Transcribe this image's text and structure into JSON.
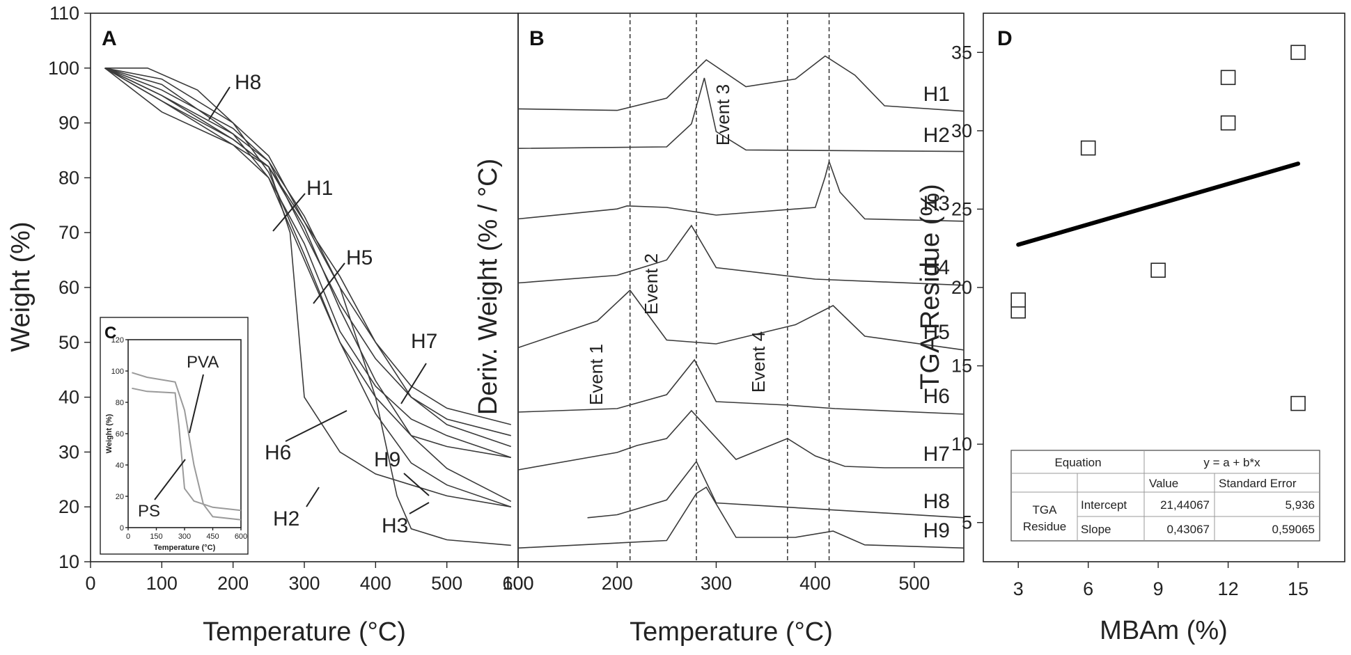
{
  "chart_data": [
    {
      "type": "line",
      "panel": "A",
      "xlabel": "Temperature (°C)",
      "ylabel": "Weight (%)",
      "xlim": [
        0,
        600
      ],
      "ylim": [
        10,
        110
      ],
      "xticks": [
        "0",
        "100",
        "200",
        "300",
        "400",
        "500",
        "600"
      ],
      "yticks": [
        "10",
        "20",
        "30",
        "40",
        "50",
        "60",
        "70",
        "80",
        "90",
        "100",
        "110"
      ],
      "series": [
        {
          "name": "H1",
          "x": [
            20,
            100,
            200,
            250,
            300,
            350,
            400,
            450,
            500,
            590
          ],
          "y": [
            100,
            97,
            88,
            83,
            70,
            57,
            47,
            40,
            36,
            33
          ]
        },
        {
          "name": "H2",
          "x": [
            20,
            100,
            200,
            250,
            280,
            300,
            350,
            400,
            450,
            500,
            590
          ],
          "y": [
            100,
            92,
            86,
            82,
            70,
            40,
            30,
            26,
            24,
            22,
            20
          ]
        },
        {
          "name": "H3",
          "x": [
            20,
            100,
            200,
            250,
            300,
            350,
            400,
            430,
            450,
            500,
            590
          ],
          "y": [
            100,
            94,
            87,
            82,
            72,
            60,
            40,
            22,
            16,
            14,
            13
          ]
        },
        {
          "name": "H4",
          "x": [
            20,
            100,
            200,
            250,
            300,
            350,
            400,
            450,
            500,
            590
          ],
          "y": [
            100,
            95,
            88,
            80,
            65,
            50,
            40,
            33,
            31,
            29
          ]
        },
        {
          "name": "H5",
          "x": [
            20,
            100,
            200,
            250,
            300,
            350,
            400,
            450,
            500,
            590
          ],
          "y": [
            100,
            98,
            90,
            84,
            72,
            62,
            50,
            40,
            35,
            31
          ]
        },
        {
          "name": "H6",
          "x": [
            20,
            100,
            200,
            250,
            300,
            350,
            400,
            450,
            500,
            590
          ],
          "y": [
            100,
            94,
            86,
            80,
            68,
            52,
            42,
            36,
            33,
            29
          ]
        },
        {
          "name": "H7",
          "x": [
            20,
            100,
            200,
            250,
            300,
            350,
            400,
            450,
            500,
            590
          ],
          "y": [
            100,
            96,
            89,
            83,
            73,
            60,
            50,
            42,
            38,
            35
          ]
        },
        {
          "name": "H8",
          "x": [
            20,
            80,
            150,
            200,
            250,
            300,
            350,
            400,
            450,
            500,
            590
          ],
          "y": [
            100,
            100,
            96,
            90,
            81,
            66,
            50,
            37,
            28,
            24,
            20
          ]
        },
        {
          "name": "H9",
          "x": [
            20,
            100,
            200,
            250,
            300,
            350,
            400,
            450,
            500,
            590
          ],
          "y": [
            100,
            95,
            87,
            82,
            71,
            56,
            43,
            33,
            27,
            21
          ]
        }
      ],
      "inset": {
        "panel": "C",
        "xlabel": "Temperature (°C)",
        "ylabel": "Weight (%)",
        "xlim": [
          0,
          600
        ],
        "ylim": [
          0,
          120
        ],
        "xticks": [
          "0",
          "150",
          "300",
          "450",
          "600"
        ],
        "yticks": [
          "0",
          "20",
          "40",
          "60",
          "80",
          "100",
          "120"
        ],
        "series": [
          {
            "name": "PVA",
            "x": [
              20,
              100,
              250,
              300,
              350,
              400,
              450,
              600
            ],
            "y": [
              99,
              96,
              93,
              75,
              40,
              15,
              7,
              5
            ]
          },
          {
            "name": "PS",
            "x": [
              20,
              100,
              250,
              270,
              300,
              350,
              450,
              600
            ],
            "y": [
              89,
              87,
              86,
              65,
              25,
              17,
              13,
              11
            ]
          }
        ]
      }
    },
    {
      "type": "line",
      "panel": "B",
      "xlabel": "Temperature (°C)",
      "ylabel": "Deriv. Weight (% / °C)",
      "xlim": [
        100,
        550
      ],
      "xticks": [
        "100",
        "200",
        "300",
        "400",
        "500"
      ],
      "events": [
        {
          "label": "Event 1",
          "x": 213
        },
        {
          "label": "Event 2",
          "x": 280
        },
        {
          "label": "Event 3",
          "x": 372
        },
        {
          "label": "Event 4",
          "x": 414
        }
      ],
      "series": [
        {
          "name": "H1",
          "x": [
            100,
            200,
            250,
            290,
            330,
            380,
            410,
            440,
            470,
            550
          ],
          "y": [
            0.06,
            0.04,
            0.2,
            0.7,
            0.35,
            0.45,
            0.75,
            0.5,
            0.1,
            0.03
          ]
        },
        {
          "name": "H2",
          "x": [
            100,
            250,
            275,
            288,
            300,
            330,
            550
          ],
          "y": [
            0.08,
            0.1,
            0.4,
            1.0,
            0.3,
            0.06,
            0.04
          ]
        },
        {
          "name": "H3",
          "x": [
            100,
            200,
            210,
            250,
            300,
            400,
            410,
            414,
            425,
            450,
            550
          ],
          "y": [
            0.05,
            0.18,
            0.22,
            0.2,
            0.1,
            0.2,
            0.6,
            0.8,
            0.4,
            0.05,
            0.02
          ]
        },
        {
          "name": "H4",
          "x": [
            100,
            200,
            250,
            275,
            300,
            400,
            550
          ],
          "y": [
            0.05,
            0.15,
            0.35,
            0.8,
            0.25,
            0.1,
            0.02
          ]
        },
        {
          "name": "H5",
          "x": [
            100,
            180,
            213,
            250,
            300,
            380,
            418,
            450,
            550
          ],
          "y": [
            0.05,
            0.4,
            0.8,
            0.15,
            0.1,
            0.35,
            0.6,
            0.2,
            0.02
          ]
        },
        {
          "name": "H6",
          "x": [
            100,
            200,
            250,
            278,
            300,
            372,
            420,
            550
          ],
          "y": [
            0.05,
            0.1,
            0.3,
            0.8,
            0.2,
            0.15,
            0.1,
            0.02
          ]
        },
        {
          "name": "H7",
          "x": [
            100,
            200,
            220,
            250,
            275,
            320,
            372,
            400,
            430,
            470,
            550
          ],
          "y": [
            0.05,
            0.3,
            0.4,
            0.5,
            0.9,
            0.2,
            0.5,
            0.25,
            0.1,
            0.08,
            0.08
          ]
        },
        {
          "name": "H8",
          "x": [
            170,
            200,
            250,
            280,
            300,
            350,
            550
          ],
          "y": [
            0.05,
            0.1,
            0.35,
            1.0,
            0.3,
            0.25,
            0.05
          ]
        },
        {
          "name": "H9",
          "x": [
            100,
            250,
            280,
            290,
            320,
            380,
            418,
            450,
            550
          ],
          "y": [
            0.03,
            0.15,
            0.9,
            1.0,
            0.2,
            0.2,
            0.3,
            0.08,
            0.03
          ]
        }
      ]
    },
    {
      "type": "scatter",
      "panel": "D",
      "xlabel": "MBAm (%)",
      "ylabel": "TGA Residue (%)",
      "xlim": [
        1.5,
        17
      ],
      "ylim": [
        2.5,
        37.5
      ],
      "xticks": [
        "3",
        "6",
        "9",
        "12",
        "15"
      ],
      "yticks": [
        "5",
        "10",
        "15",
        "20",
        "25",
        "30",
        "35"
      ],
      "points": [
        {
          "x": 3,
          "y": 18.5
        },
        {
          "x": 3,
          "y": 19.2
        },
        {
          "x": 6,
          "y": 28.9
        },
        {
          "x": 9,
          "y": 21.1
        },
        {
          "x": 12,
          "y": 30.5
        },
        {
          "x": 12,
          "y": 33.4
        },
        {
          "x": 15,
          "y": 35.0
        },
        {
          "x": 15,
          "y": 12.6
        }
      ],
      "fit": {
        "x": [
          3,
          15
        ],
        "y": [
          22.73,
          27.9
        ]
      },
      "fit_table": {
        "equation_label": "Equation",
        "equation": "y = a + b*x",
        "col_value": "Value",
        "col_error": "Standard Error",
        "row_label_1": "TGA",
        "row_label_2": "Residue",
        "rows": [
          {
            "param": "Intercept",
            "value": "21,44067",
            "error": "5,936"
          },
          {
            "param": "Slope",
            "value": "0,43067",
            "error": "0,59065"
          }
        ]
      }
    }
  ]
}
